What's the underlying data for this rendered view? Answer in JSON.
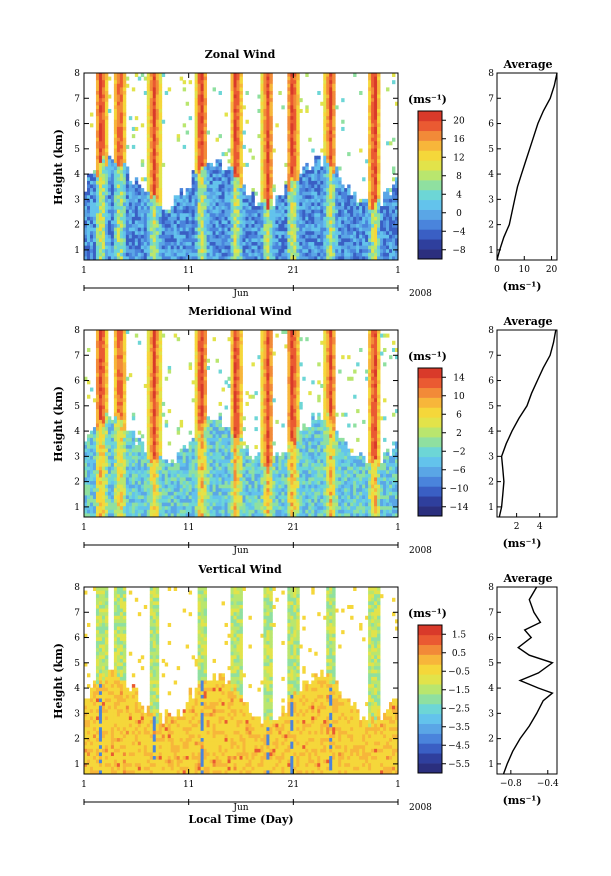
{
  "colors": {
    "scale": [
      "#2b2f7e",
      "#2f3f9d",
      "#3a5fc4",
      "#4a84dc",
      "#5aa6e6",
      "#63c3ec",
      "#6dd6d6",
      "#8fe0a0",
      "#b9e66e",
      "#e2e34a",
      "#f5d73a",
      "#f7b63a",
      "#f28a38",
      "#ea5a32",
      "#d93a2a"
    ]
  },
  "footer": {
    "xlabel": "Local Time (Day)"
  },
  "chart_data": [
    {
      "type": "heatmap",
      "title": "Zonal Wind",
      "ylabel": "Height (km)",
      "xticks": [
        "1",
        "11",
        "21",
        "1"
      ],
      "month": "Jun",
      "year": "2008",
      "ylim": [
        0.6,
        8
      ],
      "yticks": [
        "1",
        "2",
        "3",
        "4",
        "5",
        "6",
        "7",
        "8"
      ],
      "colorbar": {
        "unit": "(ms⁻¹)",
        "ticks": [
          "20",
          "16",
          "12",
          "8",
          "4",
          "0",
          "−4",
          "−8"
        ],
        "range": [
          -10,
          22
        ]
      },
      "profile": {
        "title": "Average",
        "xunit": "(ms⁻¹)",
        "xticks": [
          "0",
          "10",
          "20"
        ],
        "xlim": [
          0,
          22
        ],
        "height": [
          0.6,
          1,
          1.5,
          2,
          2.5,
          3,
          3.5,
          4,
          4.5,
          5,
          5.5,
          6,
          6.5,
          7,
          7.5,
          8
        ],
        "value": [
          0,
          1,
          2.5,
          4.5,
          5.5,
          6.5,
          7.5,
          9,
          10.5,
          12,
          13.5,
          15,
          17,
          19.5,
          21,
          22
        ]
      }
    },
    {
      "type": "heatmap",
      "title": "Meridional Wind",
      "ylabel": "Height (km)",
      "xticks": [
        "1",
        "11",
        "21",
        "1"
      ],
      "month": "Jun",
      "year": "2008",
      "ylim": [
        0.6,
        8
      ],
      "yticks": [
        "1",
        "2",
        "3",
        "4",
        "5",
        "6",
        "7",
        "8"
      ],
      "colorbar": {
        "unit": "(ms⁻¹)",
        "ticks": [
          "14",
          "10",
          "6",
          "2",
          "−2",
          "−6",
          "−10",
          "−14"
        ],
        "range": [
          -16,
          16
        ]
      },
      "profile": {
        "title": "Average",
        "xunit": "(ms⁻¹)",
        "xticks": [
          "2",
          "4"
        ],
        "xlim": [
          0.3,
          5.5
        ],
        "height": [
          0.6,
          1,
          1.5,
          2,
          2.5,
          3,
          3.5,
          4,
          4.5,
          5,
          5.5,
          6,
          6.5,
          7,
          7.5,
          8
        ],
        "value": [
          0.5,
          0.7,
          0.8,
          0.9,
          0.8,
          0.7,
          1.1,
          1.6,
          2.2,
          2.9,
          3.3,
          3.8,
          4.3,
          4.9,
          5.2,
          5.4
        ]
      }
    },
    {
      "type": "heatmap",
      "title": "Vertical Wind",
      "ylabel": "Height (km)",
      "xticks": [
        "1",
        "11",
        "21",
        "1"
      ],
      "month": "Jun",
      "year": "2008",
      "ylim": [
        0.6,
        8
      ],
      "yticks": [
        "1",
        "2",
        "3",
        "4",
        "5",
        "6",
        "7",
        "8"
      ],
      "colorbar": {
        "unit": "(ms⁻¹)",
        "ticks": [
          "1.5",
          "0.5",
          "−0.5",
          "−1.5",
          "−2.5",
          "−3.5",
          "−4.5",
          "−5.5"
        ],
        "range": [
          -6,
          2
        ]
      },
      "profile": {
        "title": "Average",
        "xunit": "(ms⁻¹)",
        "xticks": [
          "−0.8",
          "−0.4"
        ],
        "xlim": [
          -0.95,
          -0.3
        ],
        "height": [
          0.6,
          1,
          1.5,
          2,
          2.5,
          3,
          3.5,
          3.8,
          4,
          4.3,
          4.6,
          5,
          5.3,
          5.6,
          6,
          6.3,
          6.6,
          7,
          7.5,
          8
        ],
        "value": [
          -0.88,
          -0.84,
          -0.78,
          -0.7,
          -0.6,
          -0.52,
          -0.45,
          -0.35,
          -0.5,
          -0.7,
          -0.5,
          -0.35,
          -0.6,
          -0.72,
          -0.58,
          -0.65,
          -0.48,
          -0.55,
          -0.6,
          -0.52
        ]
      }
    }
  ]
}
